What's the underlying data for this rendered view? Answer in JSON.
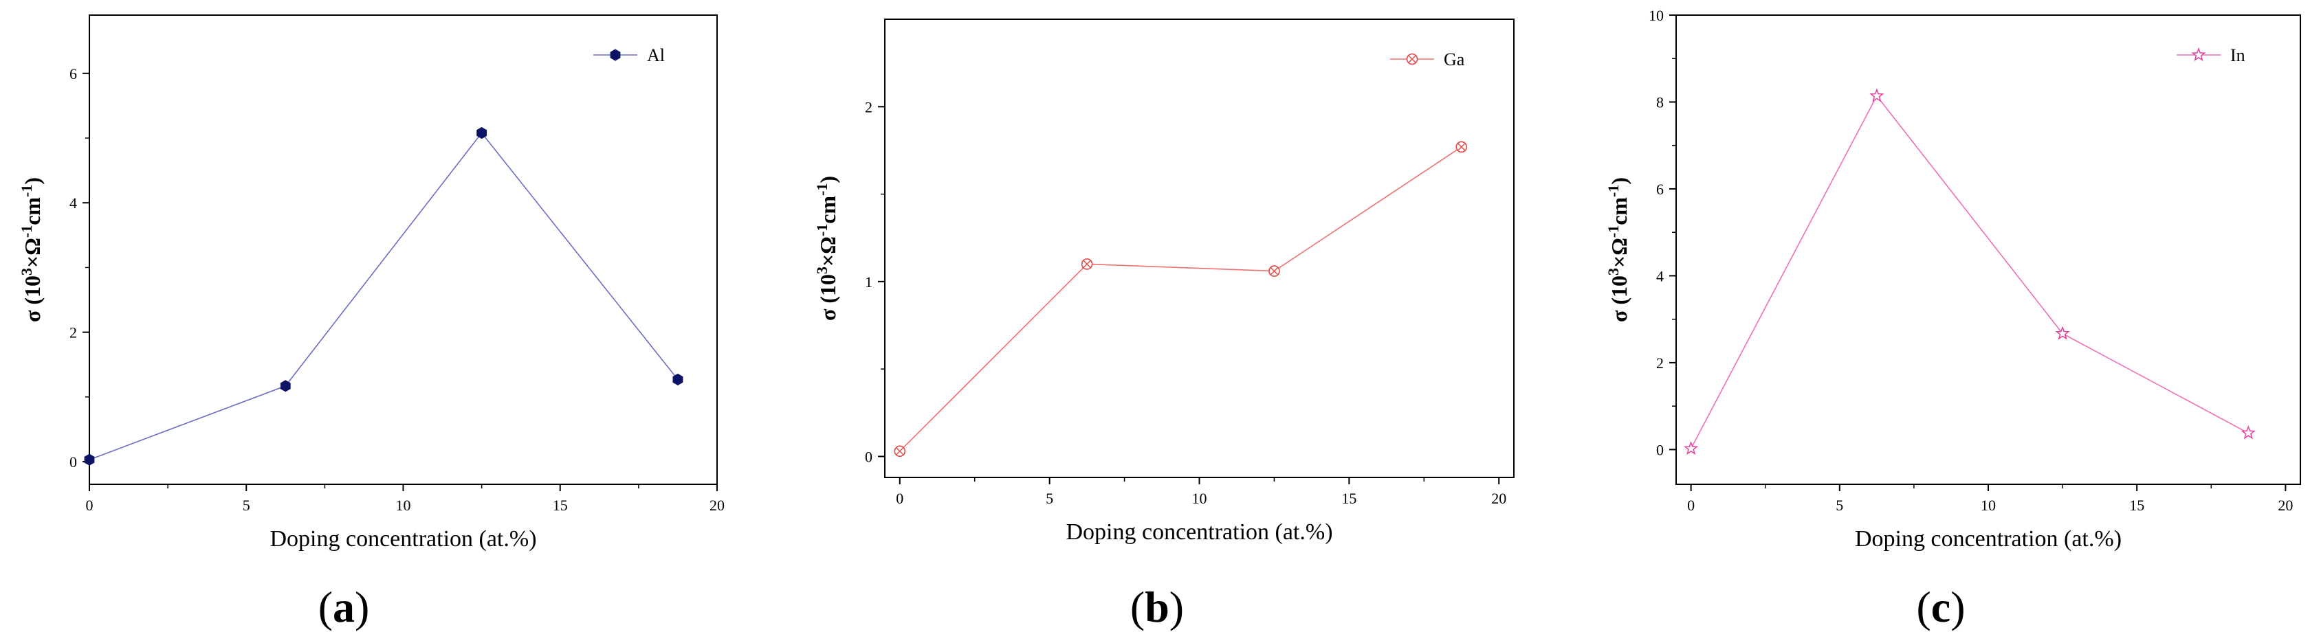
{
  "chart_data": [
    {
      "type": "line",
      "panel_label": "(a)",
      "panel_letter": "a",
      "xlabel": "Doping concentration (at.%)",
      "ylabel": "σ (10³×Ω⁻¹cm⁻¹)",
      "xlim": [
        0,
        20
      ],
      "ylim": [
        -0.35,
        6.9
      ],
      "xticks": [
        0,
        5,
        10,
        15,
        20
      ],
      "yticks": [
        0,
        2,
        4,
        6
      ],
      "grid": false,
      "legend_position": "top-right",
      "series": [
        {
          "name": "Al",
          "color": "#6a6fc4",
          "marker_color": "#0d1466",
          "marker": "hexagon",
          "x": [
            0,
            6.25,
            12.5,
            18.75
          ],
          "y": [
            0.03,
            1.17,
            5.08,
            1.27
          ]
        }
      ]
    },
    {
      "type": "line",
      "panel_label": "(b)",
      "panel_letter": "b",
      "xlabel": "Doping concentration (at.%)",
      "ylabel": "σ (10³×Ω⁻¹cm⁻¹)",
      "xlim": [
        -0.5,
        20.5
      ],
      "ylim": [
        -0.12,
        2.5
      ],
      "xticks": [
        0,
        5,
        10,
        15,
        20
      ],
      "yticks": [
        0,
        1,
        2
      ],
      "grid": false,
      "legend_position": "top-right",
      "series": [
        {
          "name": "Ga",
          "color": "#f07070",
          "marker_color": "#e04848",
          "marker": "circle-x",
          "x": [
            0,
            6.25,
            12.5,
            18.75
          ],
          "y": [
            0.03,
            1.1,
            1.06,
            1.77
          ]
        }
      ]
    },
    {
      "type": "line",
      "panel_label": "(c)",
      "panel_letter": "c",
      "xlabel": "Doping concentration (at.%)",
      "ylabel": "σ (10³×Ω⁻¹cm⁻¹)",
      "xlim": [
        -0.5,
        20.5
      ],
      "ylim": [
        -0.8,
        10
      ],
      "xticks": [
        0,
        5,
        10,
        15,
        20
      ],
      "yticks": [
        0,
        2,
        4,
        6,
        8,
        10
      ],
      "grid": false,
      "legend_position": "top-right",
      "series": [
        {
          "name": "In",
          "color": "#ef6fb7",
          "marker_color": "#e0409a",
          "marker": "star",
          "x": [
            0,
            6.25,
            12.5,
            18.75
          ],
          "y": [
            0.02,
            8.14,
            2.67,
            0.38
          ]
        }
      ]
    }
  ]
}
